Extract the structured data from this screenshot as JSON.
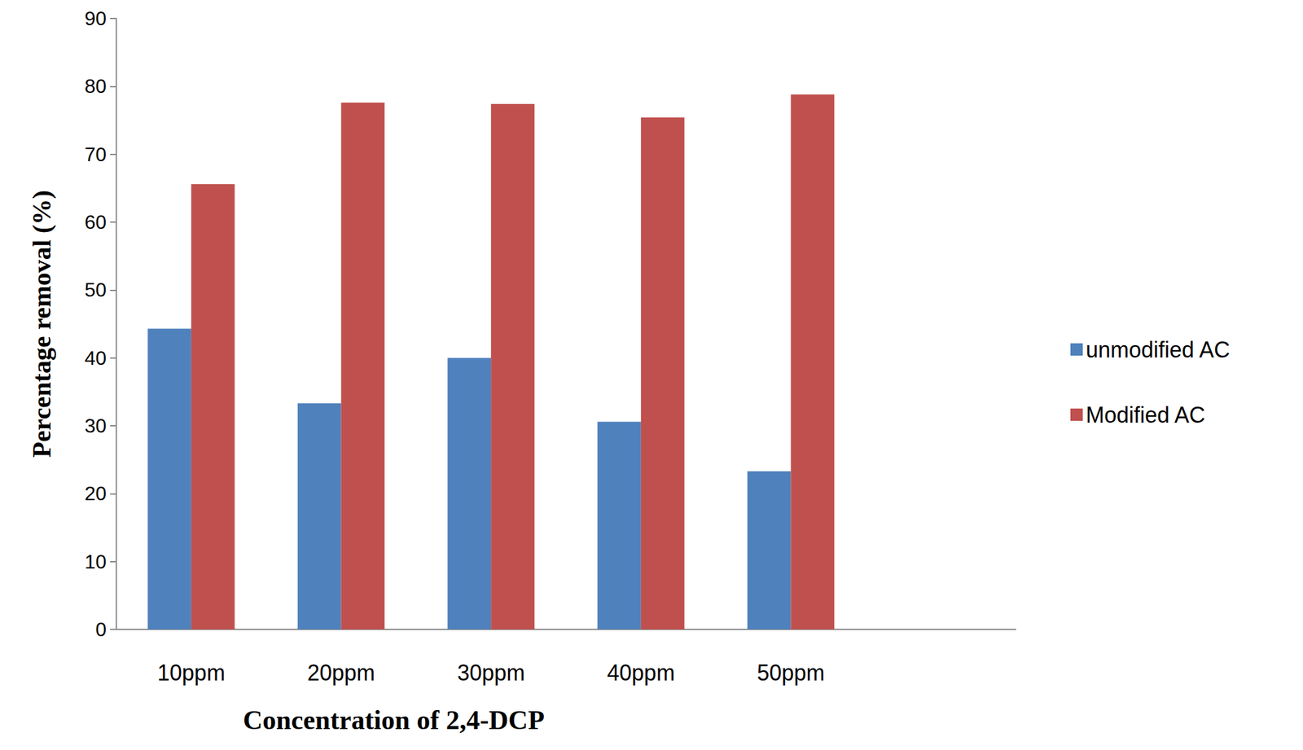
{
  "chart_data": {
    "type": "bar",
    "x_label": "Concentration of 2,4-DCP",
    "y_label": "Percentage removal (%)",
    "categories": [
      "10ppm",
      "20ppm",
      "30ppm",
      "40ppm",
      "50ppm",
      null
    ],
    "series": [
      {
        "name": "unmodified AC",
        "color": "#4f81bd",
        "values": [
          44.3,
          33.3,
          40.0,
          30.6,
          23.3,
          null
        ]
      },
      {
        "name": "Modified AC",
        "color": "#c0504d",
        "values": [
          65.6,
          77.6,
          77.4,
          75.4,
          78.8,
          null
        ]
      }
    ],
    "ylim": [
      0,
      90
    ],
    "yticks": [
      0,
      10,
      20,
      30,
      40,
      50,
      60,
      70,
      80,
      90
    ],
    "grid": false,
    "legend": "right"
  }
}
